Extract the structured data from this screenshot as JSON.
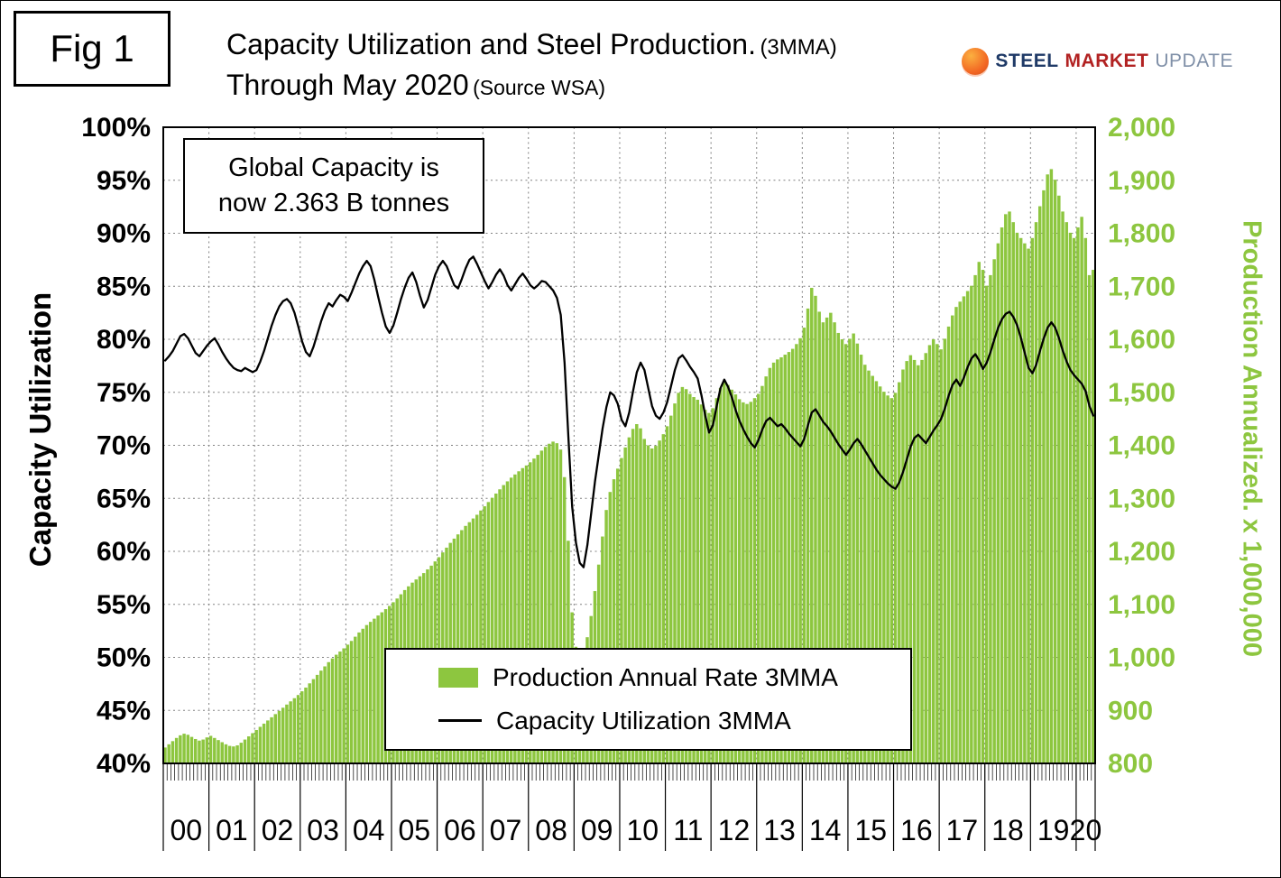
{
  "figure": {
    "label": "Fig 1"
  },
  "title": {
    "main": "Capacity Utilization and Steel Production.",
    "main_suffix": "(3MMA)",
    "sub": "Through May 2020",
    "sub_suffix": "(Source WSA)"
  },
  "logo": {
    "steel": "STEEL",
    "market": "MARKET",
    "update": "UPDATE"
  },
  "annotation": {
    "line1": "Global Capacity is",
    "line2": "now 2.363 B tonnes"
  },
  "legend": [
    {
      "label": "Production Annual Rate 3MMA",
      "marker": "bar"
    },
    {
      "label": "Capacity Utilization 3MMA",
      "marker": "line"
    }
  ],
  "colors": {
    "production_green": "#8DC63F",
    "utilization_black": "#000000",
    "logo_navy": "#1F3A67",
    "logo_red": "#B22222",
    "logo_gray": "#8090A8",
    "logo_orange": "#F26522"
  },
  "chart_data": {
    "type": "combo",
    "grid": true,
    "legend_position": "bottom-center",
    "x_years": [
      "00",
      "01",
      "02",
      "03",
      "04",
      "05",
      "06",
      "07",
      "08",
      "09",
      "10",
      "11",
      "12",
      "13",
      "14",
      "15",
      "16",
      "17",
      "18",
      "19",
      "20"
    ],
    "months_per_year": [
      12,
      12,
      12,
      12,
      12,
      12,
      12,
      12,
      12,
      12,
      12,
      12,
      12,
      12,
      12,
      12,
      12,
      12,
      12,
      12,
      5
    ],
    "left_axis": {
      "label": "Capacity Utilization",
      "range": [
        40,
        100
      ],
      "ticks": [
        "100%",
        "95%",
        "90%",
        "85%",
        "80%",
        "75%",
        "70%",
        "65%",
        "60%",
        "55%",
        "50%",
        "45%",
        "40%"
      ]
    },
    "right_axis": {
      "label": "Production Annualized. x 1,000,000",
      "range": [
        800,
        2000
      ],
      "ticks": [
        "2,000",
        "1,900",
        "1,800",
        "1,700",
        "1,600",
        "1,500",
        "1,400",
        "1,300",
        "1,200",
        "1,100",
        "1,000",
        "900",
        "800"
      ]
    },
    "series": [
      {
        "name": "Production Annual Rate 3MMA",
        "type": "bar",
        "axis": "right",
        "values": [
          830,
          836,
          842,
          848,
          853,
          856,
          854,
          850,
          846,
          843,
          845,
          849,
          852,
          848,
          844,
          840,
          836,
          833,
          832,
          834,
          839,
          845,
          851,
          857,
          863,
          869,
          875,
          881,
          887,
          893,
          899,
          905,
          911,
          917,
          923,
          929,
          936,
          943,
          951,
          959,
          967,
          975,
          983,
          991,
          998,
          1005,
          1011,
          1017,
          1024,
          1031,
          1039,
          1047,
          1054,
          1061,
          1067,
          1073,
          1079,
          1085,
          1091,
          1097,
          1104,
          1111,
          1119,
          1127,
          1134,
          1141,
          1147,
          1153,
          1159,
          1166,
          1173,
          1181,
          1189,
          1198,
          1207,
          1216,
          1224,
          1232,
          1240,
          1248,
          1255,
          1262,
          1269,
          1277,
          1285,
          1293,
          1301,
          1309,
          1317,
          1325,
          1332,
          1339,
          1345,
          1351,
          1357,
          1362,
          1368,
          1375,
          1382,
          1390,
          1397,
          1403,
          1407,
          1404,
          1392,
          1340,
          1220,
          1085,
          1020,
          1000,
          1008,
          1038,
          1078,
          1125,
          1175,
          1228,
          1278,
          1312,
          1336,
          1356,
          1376,
          1396,
          1415,
          1431,
          1440,
          1432,
          1412,
          1400,
          1394,
          1399,
          1409,
          1421,
          1436,
          1456,
          1479,
          1499,
          1510,
          1506,
          1497,
          1491,
          1486,
          1477,
          1467,
          1461,
          1470,
          1489,
          1508,
          1519,
          1514,
          1505,
          1496,
          1487,
          1481,
          1478,
          1482,
          1489,
          1497,
          1512,
          1530,
          1546,
          1556,
          1562,
          1566,
          1571,
          1576,
          1582,
          1591,
          1602,
          1622,
          1658,
          1697,
          1682,
          1652,
          1632,
          1641,
          1650,
          1632,
          1612,
          1600,
          1591,
          1601,
          1611,
          1592,
          1571,
          1552,
          1541,
          1531,
          1521,
          1511,
          1501,
          1494,
          1489,
          1499,
          1519,
          1543,
          1559,
          1570,
          1561,
          1551,
          1561,
          1574,
          1589,
          1600,
          1591,
          1581,
          1601,
          1624,
          1645,
          1661,
          1671,
          1681,
          1691,
          1701,
          1721,
          1746,
          1731,
          1701,
          1721,
          1751,
          1781,
          1811,
          1836,
          1841,
          1821,
          1801,
          1791,
          1781,
          1771,
          1791,
          1821,
          1851,
          1881,
          1911,
          1921,
          1901,
          1871,
          1841,
          1821,
          1801,
          1791,
          1811,
          1831,
          1791,
          1721,
          1731
        ]
      },
      {
        "name": "Capacity Utilization 3MMA",
        "type": "line",
        "axis": "left",
        "values": [
          78.0,
          78.4,
          78.9,
          79.6,
          80.3,
          80.5,
          80.1,
          79.4,
          78.7,
          78.4,
          78.9,
          79.4,
          79.8,
          80.1,
          79.5,
          78.8,
          78.2,
          77.7,
          77.3,
          77.1,
          77.0,
          77.3,
          77.1,
          76.9,
          77.1,
          77.9,
          78.9,
          80.1,
          81.3,
          82.3,
          83.1,
          83.6,
          83.8,
          83.4,
          82.5,
          81.2,
          79.8,
          78.8,
          78.4,
          79.3,
          80.5,
          81.7,
          82.7,
          83.4,
          83.1,
          83.7,
          84.2,
          84.0,
          83.6,
          84.4,
          85.3,
          86.2,
          86.9,
          87.4,
          86.9,
          85.6,
          84.0,
          82.5,
          81.2,
          80.6,
          81.3,
          82.5,
          83.8,
          84.9,
          85.8,
          86.3,
          85.4,
          84.1,
          83.0,
          83.7,
          84.9,
          86.1,
          86.9,
          87.4,
          86.9,
          86.0,
          85.1,
          84.8,
          85.7,
          86.7,
          87.5,
          87.8,
          87.1,
          86.3,
          85.5,
          84.8,
          85.4,
          86.1,
          86.6,
          86.0,
          85.1,
          84.6,
          85.2,
          85.8,
          86.2,
          85.7,
          85.1,
          84.8,
          85.1,
          85.5,
          85.4,
          85.0,
          84.6,
          83.9,
          82.3,
          77.8,
          70.8,
          64.2,
          60.8,
          58.9,
          58.5,
          60.6,
          63.6,
          66.6,
          69.1,
          71.6,
          73.6,
          75.0,
          74.7,
          73.9,
          72.4,
          71.8,
          73.1,
          75.1,
          76.9,
          77.8,
          77.1,
          75.4,
          73.7,
          72.8,
          72.5,
          73.1,
          74.1,
          75.6,
          77.1,
          78.2,
          78.5,
          78.0,
          77.4,
          76.9,
          76.3,
          74.7,
          72.8,
          71.2,
          71.9,
          73.7,
          75.4,
          76.2,
          75.5,
          74.5,
          73.3,
          72.3,
          71.5,
          70.8,
          70.2,
          69.8,
          70.5,
          71.5,
          72.3,
          72.6,
          72.2,
          71.8,
          72.0,
          71.6,
          71.1,
          70.7,
          70.3,
          69.9,
          70.6,
          71.9,
          73.1,
          73.4,
          72.8,
          72.2,
          71.8,
          71.3,
          70.7,
          70.1,
          69.6,
          69.1,
          69.6,
          70.2,
          70.6,
          70.1,
          69.5,
          68.9,
          68.3,
          67.7,
          67.2,
          66.8,
          66.4,
          66.1,
          65.9,
          66.5,
          67.5,
          68.7,
          69.9,
          70.7,
          71.0,
          70.6,
          70.2,
          70.8,
          71.4,
          71.9,
          72.5,
          73.5,
          74.7,
          75.7,
          76.2,
          75.6,
          76.4,
          77.4,
          78.2,
          78.6,
          78.0,
          77.2,
          77.8,
          78.8,
          80.0,
          81.1,
          81.9,
          82.4,
          82.6,
          82.1,
          81.3,
          80.1,
          78.7,
          77.3,
          76.8,
          77.6,
          78.9,
          80.1,
          81.1,
          81.6,
          81.1,
          80.1,
          78.9,
          77.9,
          77.1,
          76.6,
          76.2,
          75.8,
          75.1,
          73.7,
          72.8
        ]
      }
    ]
  }
}
